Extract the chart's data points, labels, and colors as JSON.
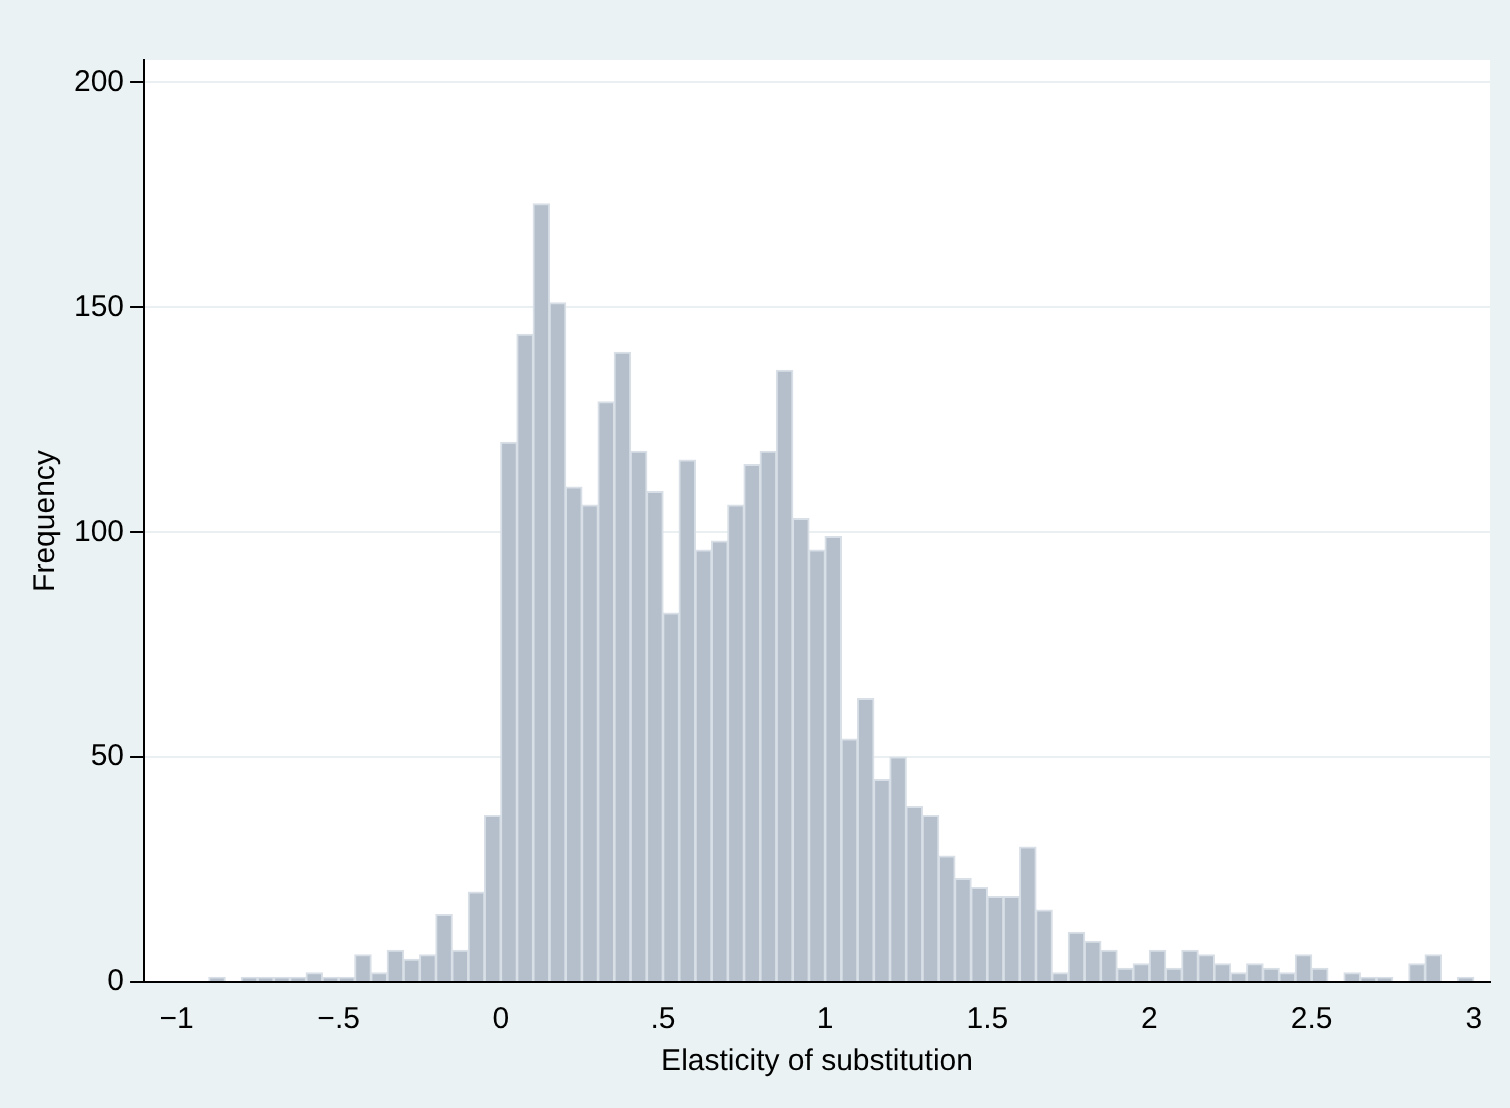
{
  "chart_data": {
    "type": "histogram",
    "xlabel": "Elasticity of substitution",
    "ylabel": "Frequency",
    "bins": [
      -1,
      -0.95,
      -0.9,
      -0.85,
      -0.8,
      -0.75,
      -0.7,
      -0.65,
      -0.6,
      -0.55,
      -0.5,
      -0.45,
      -0.4,
      -0.35,
      -0.3,
      -0.25,
      -0.2,
      -0.15,
      -0.1,
      -0.05,
      0,
      0.05,
      0.1,
      0.15,
      0.2,
      0.25,
      0.3,
      0.35,
      0.4,
      0.45,
      0.5,
      0.55,
      0.6,
      0.65,
      0.7,
      0.75,
      0.8,
      0.85,
      0.9,
      0.95,
      1,
      1.05,
      1.1,
      1.15,
      1.2,
      1.25,
      1.3,
      1.35,
      1.4,
      1.45,
      1.5,
      1.55,
      1.6,
      1.65,
      1.7,
      1.75,
      1.8,
      1.85,
      1.9,
      1.95,
      2,
      2.05,
      2.1,
      2.15,
      2.2,
      2.25,
      2.3,
      2.35,
      2.4,
      2.45,
      2.5,
      2.55,
      2.6,
      2.65,
      2.7,
      2.75,
      2.8,
      2.85,
      2.9,
      2.95,
      3
    ],
    "values": [
      0,
      0,
      1,
      0,
      1,
      1,
      1,
      1,
      2,
      1,
      1,
      6,
      2,
      7,
      5,
      6,
      15,
      7,
      20,
      37,
      120,
      144,
      173,
      151,
      110,
      106,
      129,
      140,
      118,
      109,
      82,
      116,
      96,
      98,
      106,
      115,
      118,
      136,
      103,
      96,
      99,
      54,
      63,
      45,
      50,
      39,
      37,
      28,
      23,
      21,
      19,
      19,
      30,
      16,
      2,
      11,
      9,
      7,
      3,
      4,
      7,
      3,
      7,
      6,
      4,
      2,
      4,
      3,
      2,
      6,
      3,
      0,
      2,
      1,
      1,
      0,
      4,
      6,
      0,
      1
    ],
    "color": "#b4bfcb",
    "xlim": [
      -1.1,
      3.05
    ],
    "xticks": [
      {
        "value": -1,
        "label": "−1"
      },
      {
        "value": -0.5,
        "label": "−.5"
      },
      {
        "value": 0,
        "label": "0"
      },
      {
        "value": 0.5,
        "label": ".5"
      },
      1,
      {
        "value": 1.5,
        "label": "1.5"
      },
      2,
      {
        "value": 2.5,
        "label": "2.5"
      },
      3
    ],
    "ylim": [
      0,
      205
    ],
    "yticks": [
      0,
      50,
      100,
      150,
      200
    ],
    "grid": "y",
    "legend": false
  }
}
